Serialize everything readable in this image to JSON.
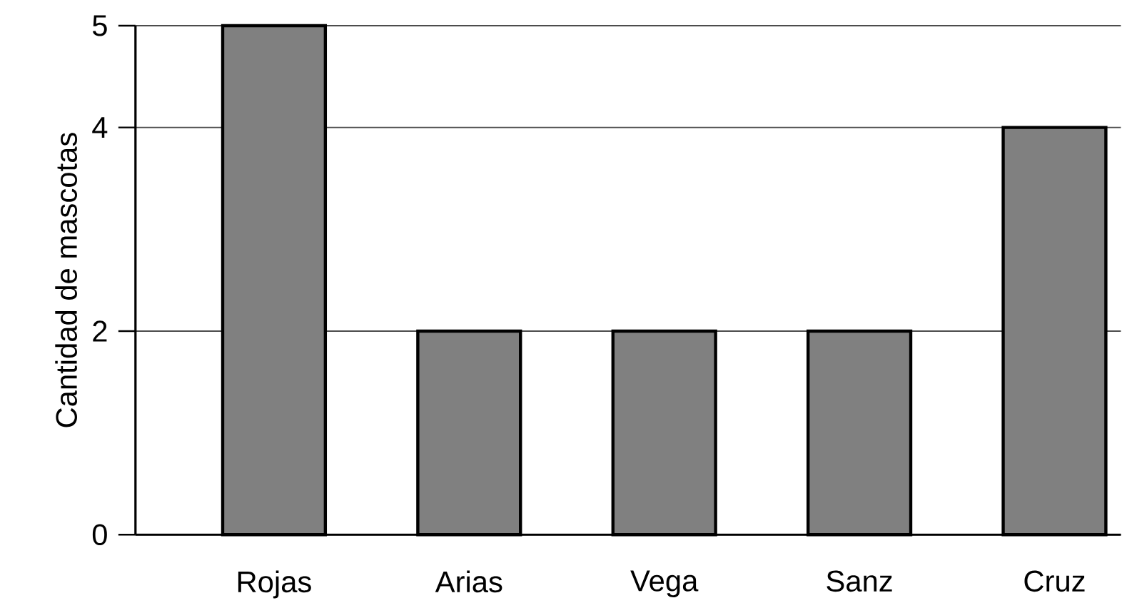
{
  "chart_data": {
    "type": "bar",
    "ylabel": "Cantidad de mascotas",
    "categories": [
      "Rojas",
      "Arias",
      "Vega",
      "Sanz",
      "Cruz"
    ],
    "values": [
      5,
      2,
      2,
      2,
      4
    ],
    "color": "#808080",
    "ylim": [
      0,
      5
    ],
    "yticks": [
      0,
      2,
      4,
      5
    ],
    "grid": "y"
  }
}
